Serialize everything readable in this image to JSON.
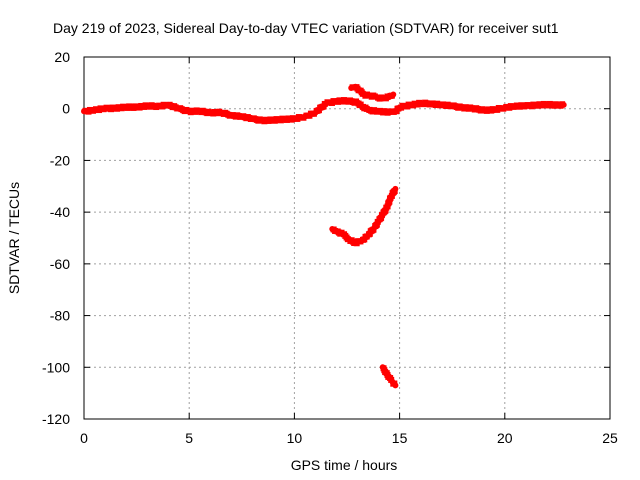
{
  "chart_data": {
    "type": "scatter",
    "title": "Day 219 of 2023, Sidereal Day-to-day VTEC variation (SDTVAR) for receiver sut1",
    "xlabel": "GPS time / hours",
    "ylabel": "SDTVAR / TECUs",
    "xlim": [
      0,
      25
    ],
    "ylim": [
      -120,
      20
    ],
    "xticks": [
      0,
      5,
      10,
      15,
      20,
      25
    ],
    "yticks": [
      20,
      0,
      -20,
      -40,
      -60,
      -80,
      -100,
      -120
    ],
    "xtick_labels": [
      "0",
      "5",
      "10",
      "15",
      "20",
      "25"
    ],
    "ytick_labels": [
      "20",
      "0",
      "-20",
      "-40",
      "-60",
      "-80",
      "-100",
      "-120"
    ],
    "grid": true,
    "color": "#ff0000",
    "series": [
      {
        "name": "main-band",
        "points": [
          [
            0.0,
            -1.0
          ],
          [
            0.5,
            -0.5
          ],
          [
            1.0,
            0.0
          ],
          [
            1.5,
            0.3
          ],
          [
            2.0,
            0.5
          ],
          [
            2.5,
            0.7
          ],
          [
            3.0,
            1.0
          ],
          [
            3.5,
            1.0
          ],
          [
            4.0,
            1.5
          ],
          [
            4.5,
            0.0
          ],
          [
            5.0,
            -1.0
          ],
          [
            5.5,
            -1.0
          ],
          [
            6.0,
            -1.5
          ],
          [
            6.5,
            -1.5
          ],
          [
            7.0,
            -2.5
          ],
          [
            7.5,
            -3.0
          ],
          [
            8.0,
            -4.0
          ],
          [
            8.5,
            -4.5
          ],
          [
            9.0,
            -4.5
          ],
          [
            9.5,
            -4.0
          ],
          [
            10.0,
            -4.0
          ],
          [
            10.5,
            -3.0
          ],
          [
            11.0,
            -1.5
          ],
          [
            11.5,
            2.0
          ],
          [
            12.0,
            3.0
          ],
          [
            12.5,
            3.0
          ],
          [
            13.0,
            2.5
          ],
          [
            13.2,
            1.0
          ],
          [
            13.5,
            -0.5
          ],
          [
            14.0,
            -1.0
          ],
          [
            14.5,
            -1.5
          ],
          [
            14.8,
            -1.0
          ],
          [
            15.0,
            0.5
          ],
          [
            15.5,
            1.5
          ],
          [
            16.0,
            2.0
          ],
          [
            16.5,
            2.0
          ],
          [
            17.0,
            1.5
          ],
          [
            17.5,
            1.0
          ],
          [
            18.0,
            0.5
          ],
          [
            18.5,
            0.0
          ],
          [
            19.0,
            -0.5
          ],
          [
            19.5,
            -0.5
          ],
          [
            20.0,
            0.5
          ],
          [
            20.5,
            1.0
          ],
          [
            21.0,
            1.0
          ],
          [
            21.5,
            1.5
          ],
          [
            22.0,
            1.5
          ],
          [
            22.5,
            1.5
          ],
          [
            22.8,
            1.5
          ]
        ]
      },
      {
        "name": "upper-arc",
        "points": [
          [
            12.7,
            8.0
          ],
          [
            12.9,
            8.5
          ],
          [
            13.1,
            7.0
          ],
          [
            13.3,
            5.5
          ],
          [
            13.6,
            5.0
          ],
          [
            13.9,
            4.5
          ],
          [
            14.2,
            4.0
          ],
          [
            14.5,
            4.5
          ],
          [
            14.7,
            5.5
          ]
        ]
      },
      {
        "name": "descending-arc",
        "points": [
          [
            11.8,
            -46.5
          ],
          [
            12.0,
            -47.5
          ],
          [
            12.3,
            -48.5
          ],
          [
            12.6,
            -50.5
          ],
          [
            12.9,
            -52.0
          ],
          [
            13.2,
            -51.0
          ],
          [
            13.5,
            -49.0
          ],
          [
            13.8,
            -46.0
          ],
          [
            14.0,
            -43.5
          ],
          [
            14.2,
            -41.0
          ],
          [
            14.4,
            -38.0
          ],
          [
            14.6,
            -34.0
          ],
          [
            14.8,
            -31.0
          ]
        ]
      },
      {
        "name": "low-segment",
        "points": [
          [
            14.2,
            -100.0
          ],
          [
            14.35,
            -102.0
          ],
          [
            14.5,
            -104.0
          ],
          [
            14.65,
            -105.5
          ],
          [
            14.8,
            -107.0
          ]
        ]
      }
    ]
  }
}
